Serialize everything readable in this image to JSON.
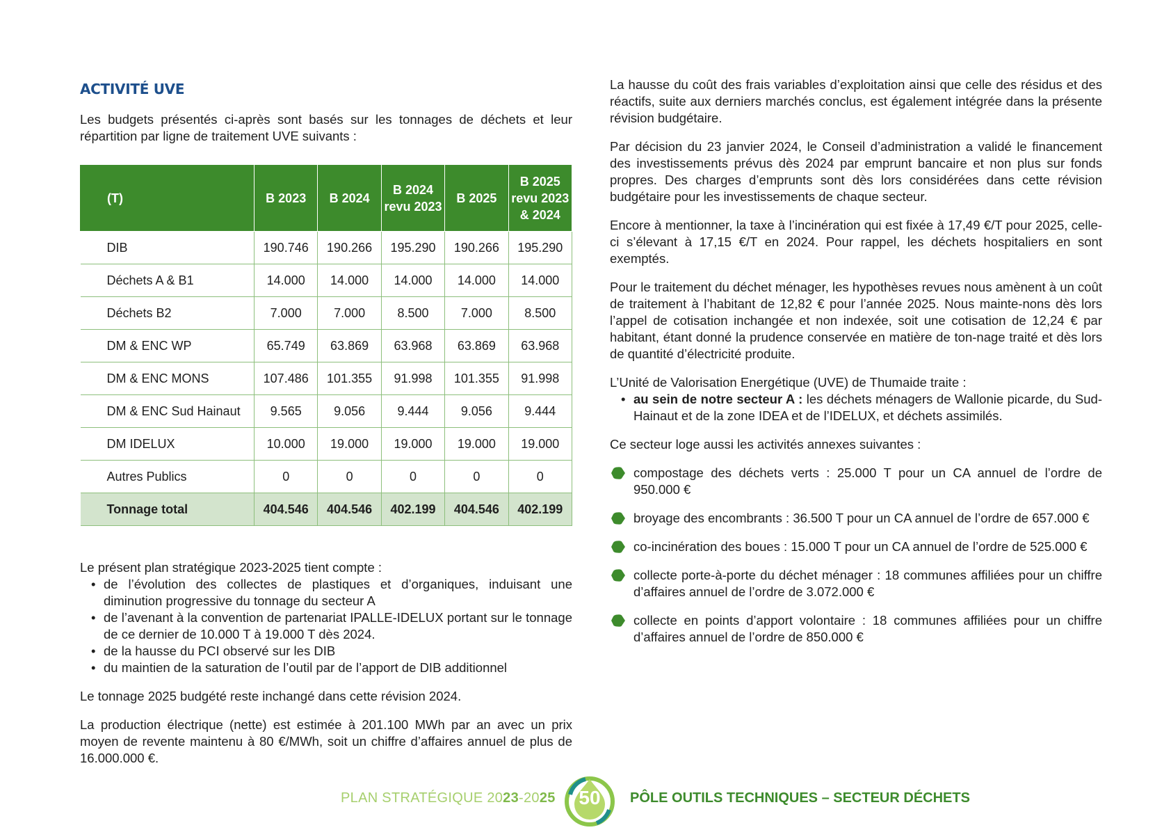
{
  "left": {
    "heading": "ACTIVITÉ UVE",
    "intro": "Les budgets présentés ci-après sont basés sur les tonnages de déchets et leur répartition par ligne de traitement UVE suivants :",
    "table": {
      "headers": [
        "(T)",
        "B 2023",
        "B 2024",
        "B 2024 revu 2023",
        "B 2025",
        "B 2025 revu 2023 & 2024"
      ],
      "rows": [
        {
          "label": "DIB",
          "values": [
            "190.746",
            "190.266",
            "195.290",
            "190.266",
            "195.290"
          ]
        },
        {
          "label": "Déchets A & B1",
          "values": [
            "14.000",
            "14.000",
            "14.000",
            "14.000",
            "14.000"
          ]
        },
        {
          "label": "Déchets B2",
          "values": [
            "7.000",
            "7.000",
            "8.500",
            "7.000",
            "8.500"
          ]
        },
        {
          "label": "DM & ENC WP",
          "values": [
            "65.749",
            "63.869",
            "63.968",
            "63.869",
            "63.968"
          ]
        },
        {
          "label": "DM & ENC MONS",
          "values": [
            "107.486",
            "101.355",
            "91.998",
            "101.355",
            "91.998"
          ]
        },
        {
          "label": "DM & ENC Sud Hainaut",
          "values": [
            "9.565",
            "9.056",
            "9.444",
            "9.056",
            "9.444"
          ]
        },
        {
          "label": "DM IDELUX",
          "values": [
            "10.000",
            "19.000",
            "19.000",
            "19.000",
            "19.000"
          ]
        },
        {
          "label": "Autres Publics",
          "values": [
            "0",
            "0",
            "0",
            "0",
            "0"
          ]
        }
      ],
      "total": {
        "label": "Tonnage total",
        "values": [
          "404.546",
          "404.546",
          "402.199",
          "404.546",
          "402.199"
        ]
      }
    },
    "plan_intro": "Le présent plan stratégique 2023-2025 tient compte :",
    "plan_items": [
      "de l’évolution des collectes de plastiques et d’organiques, induisant une diminution progressive du tonnage du secteur A",
      "de l’avenant à la convention de partenariat IPALLE-IDELUX portant sur le tonnage de ce dernier de 10.000 T à 19.000 T dès 2024.",
      "de la hausse du PCI observé sur les DIB",
      "du maintien de la saturation de l’outil par de l’apport de DIB additionnel"
    ],
    "p_tonnage": "Le tonnage 2025 budgété reste inchangé dans cette révision 2024.",
    "p_production": "La production électrique (nette) est estimée à 201.100 MWh par an avec un prix moyen de revente maintenu à 80 €/MWh, soit un chiffre d’affaires annuel de plus de 16.000.000 €."
  },
  "right": {
    "p1": "La hausse du coût des frais variables d’exploitation ainsi que celle des résidus et des réactifs, suite aux derniers marchés conclus, est également intégrée dans la présente révision budgétaire.",
    "p2": "Par décision du 23 janvier 2024, le Conseil d’administration a validé le financement des investissements prévus dès 2024 par emprunt bancaire et non plus sur fonds propres. Des charges d’emprunts sont dès lors considérées dans cette révision budgétaire pour les investissements de chaque secteur.",
    "p3": "Encore à mentionner, la taxe à l’incinération qui est fixée à 17,49 €/T pour 2025, celle-ci s’élevant à 17,15 €/T en 2024. Pour rappel, les déchets hospitaliers en sont exemptés.",
    "p4": "Pour le traitement du déchet ménager, les hypothèses revues nous amènent à un coût de traitement à l’habitant de 12,82 € pour l’année 2025. Nous mainte-nons dès lors l’appel de cotisation inchangée et non indexée, soit une cotisation de 12,24 € par habitant, étant donné la prudence conservée en matière de ton-nage traité et dès lors de quantité d’électricité produite.",
    "p5": "L’Unité de Valorisation Energétique (UVE) de Thumaide traite :",
    "sector_bold": "au sein de notre secteur A :",
    "sector_text": " les déchets ménagers de Wallonie picarde, du Sud-Hainaut et de la zone IDEA et de l’IDELUX, et déchets assimilés.",
    "p6": "Ce secteur loge aussi les activités annexes suivantes :",
    "annex": [
      "compostage des déchets verts : 25.000 T pour un CA annuel de l’ordre de 950.000 €",
      "broyage des encombrants : 36.500 T pour un CA annuel de l’ordre de 657.000 €",
      "co-incinération des boues : 15.000 T pour un CA annuel de l’ordre de 525.000 €",
      "collecte porte-à-porte du déchet ménager : 18 communes affiliées pour un chiffre d’affaires annuel de l’ordre de 3.072.000 €",
      "collecte en points d’apport volontaire : 18 communes affiliées pour un chiffre d’affaires annuel de l’ordre de 850.000 €"
    ]
  },
  "footer": {
    "left_prefix": "PLAN STRATÉGIQUE 20",
    "left_y1": "23",
    "left_mid": "-20",
    "left_y2": "25",
    "page": "50",
    "right": "PÔLE OUTILS TECHNIQUES – SECTEUR DÉCHETS"
  },
  "colors": {
    "green": "#3d8b2c",
    "light_green": "#d3e4cd",
    "blue": "#1d4f8c",
    "footer_green": "#a6cf6d"
  }
}
